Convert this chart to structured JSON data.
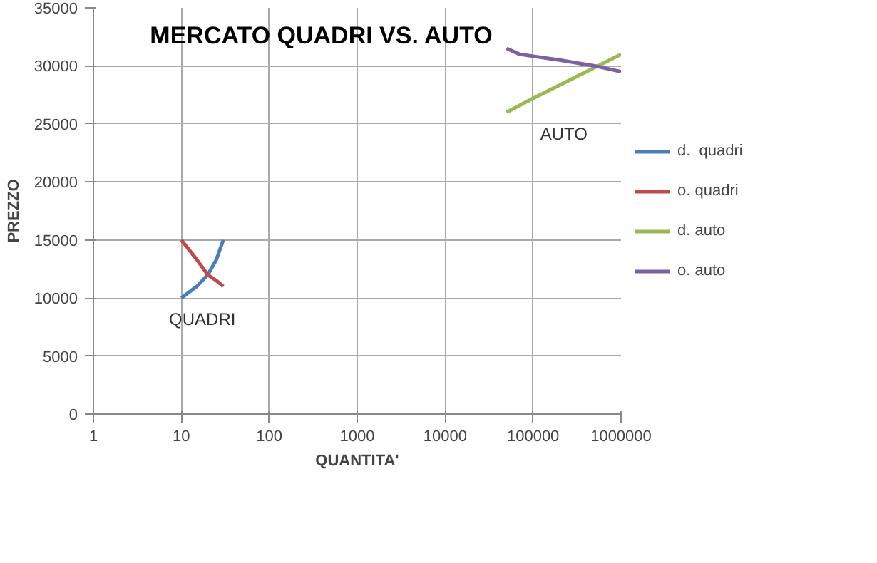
{
  "chart_data": {
    "type": "line",
    "title": "MERCATO QUADRI VS. AUTO",
    "xlabel": "QUANTITA'",
    "ylabel": "PREZZO",
    "log": "x",
    "xlim": [
      1,
      1000000
    ],
    "xticks": [
      1,
      10,
      100,
      1000,
      10000,
      100000,
      1000000
    ],
    "ylim": [
      0,
      35000
    ],
    "yticks": [
      0,
      5000,
      10000,
      15000,
      20000,
      25000,
      30000,
      35000
    ],
    "grid": true,
    "legend": "right",
    "line_style": "solid",
    "annotations": [
      "QUADRI",
      "AUTO"
    ],
    "series": [
      {
        "name": "d.  quadri",
        "color": "#4a7ebb",
        "x": [
          10,
          15,
          20,
          25,
          30
        ],
        "values": [
          10000,
          11000,
          12000,
          13300,
          15000
        ]
      },
      {
        "name": "o. quadri",
        "color": "#be4b48",
        "x": [
          10,
          15,
          20,
          25,
          30
        ],
        "values": [
          15000,
          13300,
          12000,
          11500,
          11000
        ]
      },
      {
        "name": "d. auto",
        "color": "#98b954",
        "x": [
          50000,
          100000,
          1000000
        ],
        "values": [
          26000,
          27200,
          31000
        ]
      },
      {
        "name": "o. auto",
        "color": "#7d60a0",
        "x": [
          50000,
          70000,
          200000,
          500000,
          1000000
        ],
        "values": [
          31500,
          31000,
          30500,
          30000,
          29500
        ]
      }
    ]
  }
}
